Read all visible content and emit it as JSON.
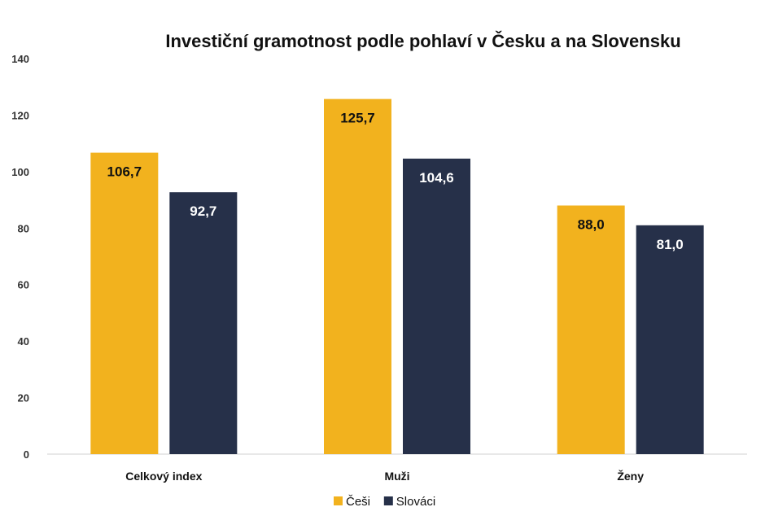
{
  "chart_data": {
    "type": "bar",
    "title": "Investiční gramotnost podle pohlaví v Česku a na Slovensku",
    "categories": [
      "Celkový index",
      "Muži",
      "Ženy"
    ],
    "series": [
      {
        "name": "Češi",
        "values": [
          106.7,
          125.7,
          88.0
        ],
        "labels": [
          "106,7",
          "125,7",
          "88,0"
        ],
        "color": "#F2B21E",
        "label_color": "#111111"
      },
      {
        "name": "Slováci",
        "values": [
          92.7,
          104.6,
          81.0
        ],
        "labels": [
          "92,7",
          "104,6",
          "81,0"
        ],
        "color": "#263049",
        "label_color": "#ffffff"
      }
    ],
    "ylim": [
      0,
      140
    ],
    "yticks": [
      "0",
      "20",
      "40",
      "60",
      "80",
      "100",
      "120",
      "140"
    ],
    "legend_position": "bottom",
    "grid": false
  }
}
